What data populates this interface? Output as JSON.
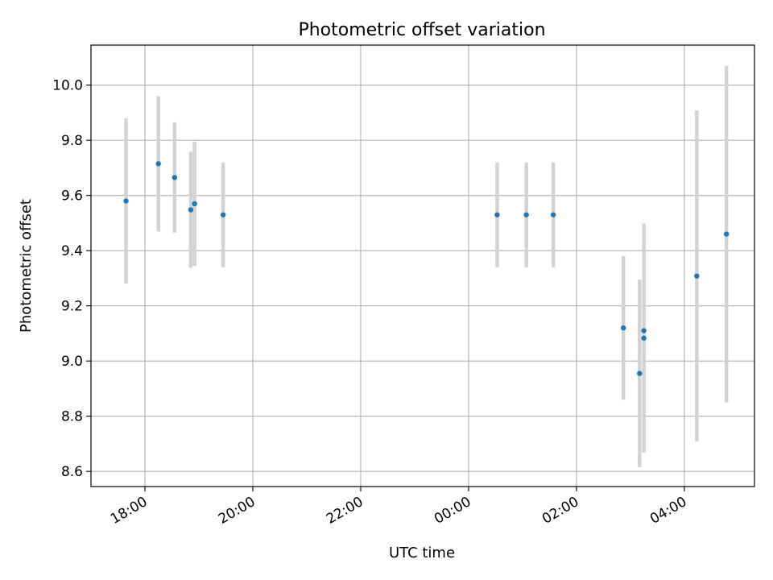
{
  "chart_data": {
    "type": "scatter",
    "title": "Photometric offset variation",
    "xlabel": "UTC time",
    "ylabel": "Photometric offset",
    "x_unit": "hours since 00:00 (first day)",
    "xlim": [
      -7.0,
      5.3
    ],
    "ylim": [
      8.545,
      10.145
    ],
    "grid": true,
    "x_ticks": [
      {
        "value": -6,
        "label": "18:00"
      },
      {
        "value": -4,
        "label": "20:00"
      },
      {
        "value": -2,
        "label": "22:00"
      },
      {
        "value": 0,
        "label": "00:00"
      },
      {
        "value": 2,
        "label": "02:00"
      },
      {
        "value": 4,
        "label": "04:00"
      }
    ],
    "y_ticks": [
      {
        "value": 8.6,
        "label": "8.6"
      },
      {
        "value": 8.8,
        "label": "8.8"
      },
      {
        "value": 9.0,
        "label": "9.0"
      },
      {
        "value": 9.2,
        "label": "9.2"
      },
      {
        "value": 9.4,
        "label": "9.4"
      },
      {
        "value": 9.6,
        "label": "9.6"
      },
      {
        "value": 9.8,
        "label": "9.8"
      },
      {
        "value": 10.0,
        "label": "10.0"
      }
    ],
    "colors": {
      "point": "#1f77b4",
      "errorbar": "#d3d3d3",
      "grid": "#b0b0b0"
    },
    "points": [
      {
        "x": -6.35,
        "y": 9.58,
        "err": 0.3
      },
      {
        "x": -5.75,
        "y": 9.715,
        "err": 0.245
      },
      {
        "x": -5.45,
        "y": 9.665,
        "err": 0.2
      },
      {
        "x": -5.15,
        "y": 9.548,
        "err": 0.21
      },
      {
        "x": -5.08,
        "y": 9.57,
        "err": 0.225
      },
      {
        "x": -4.55,
        "y": 9.53,
        "err": 0.19
      },
      {
        "x": 0.53,
        "y": 9.53,
        "err": 0.19
      },
      {
        "x": 1.07,
        "y": 9.53,
        "err": 0.19
      },
      {
        "x": 1.57,
        "y": 9.53,
        "err": 0.19
      },
      {
        "x": 2.87,
        "y": 9.12,
        "err": 0.26
      },
      {
        "x": 3.17,
        "y": 8.955,
        "err": 0.34
      },
      {
        "x": 3.25,
        "y": 9.11,
        "err": 0.0
      },
      {
        "x": 3.25,
        "y": 9.083,
        "err": 0.415
      },
      {
        "x": 4.23,
        "y": 9.308,
        "err": 0.6
      },
      {
        "x": 4.78,
        "y": 9.46,
        "err": 0.61
      }
    ]
  }
}
